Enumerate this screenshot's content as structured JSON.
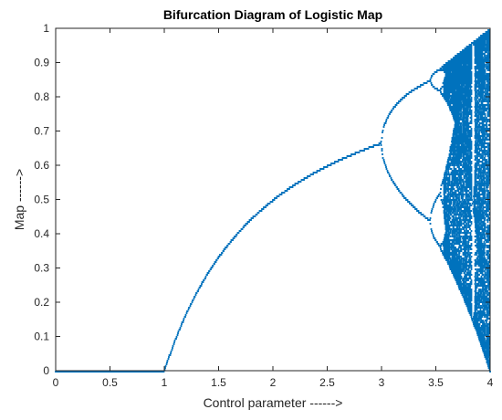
{
  "chart_data": {
    "type": "scatter",
    "title": "Bifurcation Diagram of Logistic Map",
    "xlabel": "Control parameter ------>",
    "ylabel": "Map ------>",
    "xlim": [
      0,
      4
    ],
    "ylim": [
      0,
      1
    ],
    "x_ticks": [
      "0",
      "0.5",
      "1",
      "1.5",
      "2",
      "2.5",
      "3",
      "3.5",
      "4"
    ],
    "y_ticks": [
      "0",
      "0.1",
      "0.2",
      "0.3",
      "0.4",
      "0.5",
      "0.6",
      "0.7",
      "0.8",
      "0.9",
      "1"
    ],
    "grid": false,
    "series": [
      {
        "color": "#0072BD",
        "map": "x_next = r * x * (1 - x)",
        "r_range": [
          0,
          4
        ],
        "x_values_shown": "long-run (attractor) values of x for each r",
        "sample_values": [
          {
            "r": 0.5,
            "x": [
              0
            ]
          },
          {
            "r": 1.0,
            "x": [
              0
            ]
          },
          {
            "r": 1.5,
            "x": [
              0.333
            ]
          },
          {
            "r": 2.0,
            "x": [
              0.5
            ]
          },
          {
            "r": 2.5,
            "x": [
              0.6
            ]
          },
          {
            "r": 3.0,
            "x": [
              0.667
            ]
          },
          {
            "r": 3.2,
            "x": [
              0.513,
              0.8
            ]
          },
          {
            "r": 3.5,
            "x": [
              0.383,
              0.501,
              0.827,
              0.875
            ]
          },
          {
            "r": 3.83,
            "x": [
              0.156,
              0.505,
              0.957
            ]
          },
          {
            "r": 4.0,
            "x": [
              0.0,
              1.0
            ]
          }
        ]
      }
    ]
  }
}
